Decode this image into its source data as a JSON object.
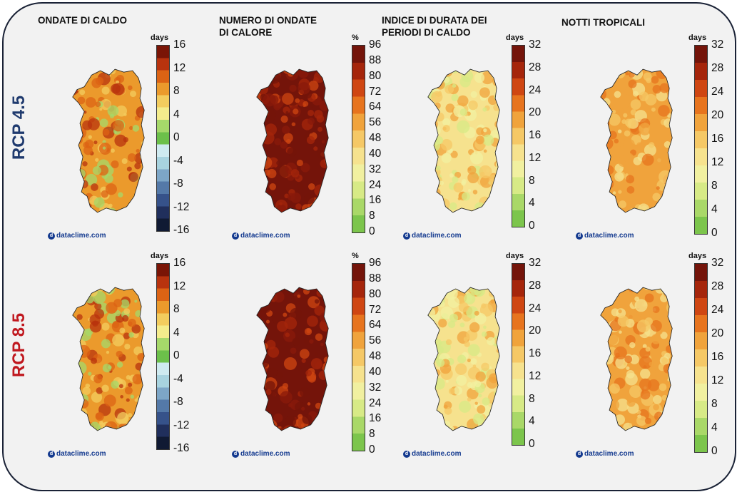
{
  "columns": [
    {
      "title_lines": [
        "ONDATE DI CALDO"
      ],
      "colorbar": {
        "unit": "days",
        "ticks": [
          "16",
          "12",
          "8",
          "4",
          "0",
          "-4",
          "-8",
          "-12",
          "-16"
        ],
        "scale": "diverging"
      },
      "map_tone": "orange-diverging"
    },
    {
      "title_lines": [
        "NUMERO DI ONDATE",
        "DI CALORE"
      ],
      "colorbar": {
        "unit": "%",
        "ticks": [
          "96",
          "88",
          "80",
          "72",
          "64",
          "56",
          "48",
          "40",
          "32",
          "24",
          "16",
          "8",
          "0"
        ],
        "scale": "sequential"
      },
      "map_tone": "dark-red"
    },
    {
      "title_lines": [
        "INDICE DI DURATA DEI",
        "PERIODI DI CALDO"
      ],
      "colorbar": {
        "unit": "days",
        "ticks": [
          "32",
          "28",
          "24",
          "20",
          "16",
          "12",
          "8",
          "4",
          "0"
        ],
        "scale": "sequential"
      },
      "map_tone": "yellow"
    },
    {
      "title_lines": [
        "NOTTI TROPICALI"
      ],
      "colorbar": {
        "unit": "days",
        "ticks": [
          "32",
          "28",
          "24",
          "20",
          "16",
          "12",
          "8",
          "4",
          "0"
        ],
        "scale": "sequential"
      },
      "map_tone": "orange"
    }
  ],
  "rows": [
    {
      "label": "RCP 4.5",
      "color": "#1f3a6e"
    },
    {
      "label": "RCP 8.5",
      "color": "#c0181f"
    }
  ],
  "brand": "dataclime.com",
  "colors": {
    "diverging": [
      "#7a1506",
      "#b8330e",
      "#dc6314",
      "#eb9a2c",
      "#f3cc5e",
      "#f4ec8c",
      "#a6d86a",
      "#6cc04a",
      "#cfeaf0",
      "#a8d3df",
      "#7da6c7",
      "#5479a8",
      "#36528a",
      "#202f5c",
      "#101a33"
    ],
    "sequential": [
      "#74140a",
      "#a5250b",
      "#cf4612",
      "#e7741e",
      "#f0a33c",
      "#f5c866",
      "#f6e28e",
      "#f1f0a0",
      "#d7ea86",
      "#a9d868",
      "#7cc54c"
    ]
  }
}
